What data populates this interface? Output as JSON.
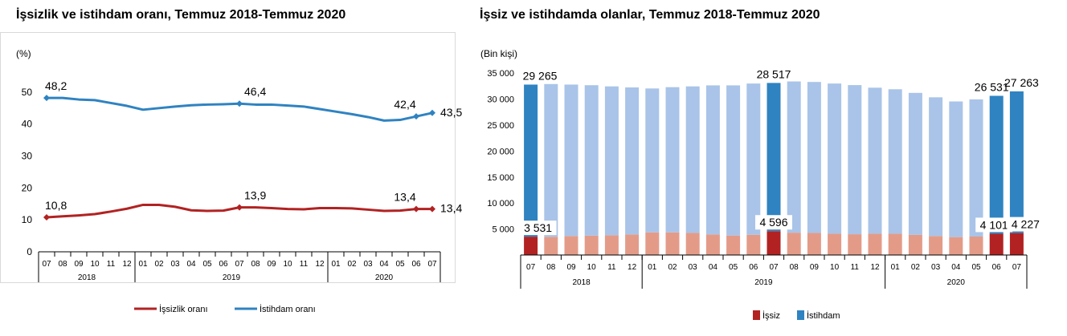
{
  "chart_data": [
    {
      "type": "line",
      "title": "İşsizlik ve istihdam oranı, Temmuz 2018-Temmuz 2020",
      "unit_label": "(%)",
      "months": [
        "07",
        "08",
        "09",
        "10",
        "11",
        "12",
        "01",
        "02",
        "03",
        "04",
        "05",
        "06",
        "07",
        "08",
        "09",
        "10",
        "11",
        "12",
        "01",
        "02",
        "03",
        "04",
        "05",
        "06",
        "07"
      ],
      "years": [
        {
          "label": "2018",
          "start": 0,
          "end": 5
        },
        {
          "label": "2019",
          "start": 6,
          "end": 17
        },
        {
          "label": "2020",
          "start": 18,
          "end": 24
        }
      ],
      "ylim": [
        0,
        55
      ],
      "yticks": [
        0,
        10,
        20,
        30,
        40,
        50
      ],
      "series": [
        {
          "name": "İşsizlik oranı",
          "color": "#b22222",
          "values": [
            10.8,
            11.1,
            11.4,
            11.8,
            12.6,
            13.5,
            14.7,
            14.7,
            14.1,
            13.0,
            12.8,
            12.9,
            13.9,
            13.9,
            13.7,
            13.4,
            13.3,
            13.7,
            13.7,
            13.6,
            13.2,
            12.8,
            12.9,
            13.4,
            13.4
          ],
          "labeled": [
            0,
            12,
            23,
            24
          ]
        },
        {
          "name": "İstihdam oranı",
          "color": "#2f83c1",
          "values": [
            48.2,
            48.2,
            47.7,
            47.5,
            46.6,
            45.7,
            44.5,
            45.0,
            45.5,
            45.9,
            46.1,
            46.2,
            46.4,
            46.1,
            46.1,
            45.8,
            45.5,
            44.7,
            43.9,
            43.1,
            42.2,
            41.1,
            41.3,
            42.4,
            43.5
          ],
          "labeled": [
            0,
            12,
            23,
            24
          ]
        }
      ],
      "data_labels": {
        "s0": [
          "10,8",
          "13,9",
          "13,4",
          "13,4"
        ],
        "s1": [
          "48,2",
          "46,4",
          "42,4",
          "43,5"
        ]
      },
      "legend_position": "bottom"
    },
    {
      "type": "bar",
      "title": "İşsiz ve istihdamda olanlar, Temmuz 2018-Temmuz 2020",
      "unit_label": "(Bin kişi)",
      "months": [
        "07",
        "08",
        "09",
        "10",
        "11",
        "12",
        "01",
        "02",
        "03",
        "04",
        "05",
        "06",
        "07",
        "08",
        "09",
        "10",
        "11",
        "12",
        "01",
        "02",
        "03",
        "04",
        "05",
        "06",
        "07"
      ],
      "years": [
        {
          "label": "2018",
          "start": 0,
          "end": 5
        },
        {
          "label": "2019",
          "start": 6,
          "end": 17
        },
        {
          "label": "2020",
          "start": 18,
          "end": 24
        }
      ],
      "ylim": [
        0,
        35000
      ],
      "yticks": [
        5000,
        10000,
        15000,
        20000,
        25000,
        30000,
        35000
      ],
      "ytick_labels": [
        "5 000",
        "10 000",
        "15 000",
        "20 000",
        "25 000",
        "30 000",
        "35 000"
      ],
      "series": [
        {
          "name": "İşsiz",
          "values": [
            3531,
            3500,
            3650,
            3730,
            3800,
            3950,
            4350,
            4350,
            4250,
            3950,
            3750,
            3900,
            4596,
            4300,
            4250,
            4100,
            4000,
            4100,
            4100,
            3900,
            3650,
            3450,
            3550,
            4101,
            4227
          ]
        },
        {
          "name": "İstihdam",
          "values": [
            29265,
            29400,
            29150,
            28950,
            28650,
            28300,
            27700,
            27950,
            28200,
            28700,
            28900,
            29100,
            28517,
            29100,
            29050,
            28900,
            28700,
            28100,
            27800,
            27300,
            26700,
            26100,
            26400,
            26531,
            27263
          ]
        }
      ],
      "highlight": [
        0,
        12,
        23,
        24
      ],
      "colors": {
        "unemployed_light": "#e39b88",
        "unemployed_dark": "#b22222",
        "employed_light": "#a9c4e8",
        "employed_dark": "#2f83c1"
      },
      "data_labels": {
        "istihdam": [
          "29 265",
          "28 517",
          "26 531",
          "27 263"
        ],
        "issiz": [
          "3 531",
          "4 596",
          "4 101",
          "4 227"
        ]
      },
      "legend_position": "bottom"
    }
  ]
}
